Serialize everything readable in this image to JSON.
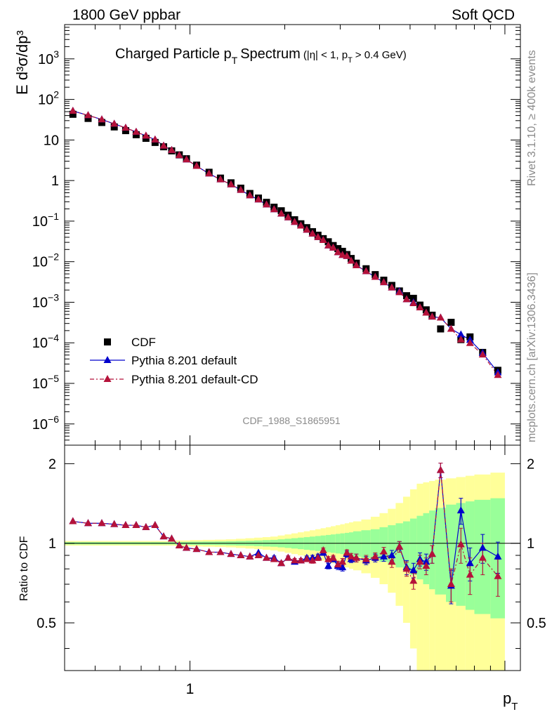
{
  "header": {
    "left": "1800 GeV ppbar",
    "right": "Soft QCD"
  },
  "side_labels": {
    "rivet": "Rivet 3.1.10, ≥ 400k events",
    "mcplots": "mcplots.cern.ch [arXiv:1306.3436]"
  },
  "chart_data": [
    {
      "type": "scatter",
      "title_main": "Charged Particle p",
      "title_main_sub": "T",
      "title_main_suffix": "Spectrum",
      "title_cut_a": "(|η| < 1, p",
      "title_cut_sub": "T",
      "title_cut_b": "> 0.4 GeV)",
      "ylabel": "E d³σ/dp³",
      "xlabel": "p",
      "xlabel_sub": "T",
      "analysis_label": "CDF_1988_S1865951",
      "xscale": "log",
      "yscale": "log",
      "xlim": [
        0.4,
        11.2
      ],
      "ylim": [
        3e-07,
        7000
      ],
      "ytick_labels": [
        {
          "base": "10",
          "exp": "3",
          "value": 1000
        },
        {
          "base": "10",
          "exp": "2",
          "value": 100
        },
        {
          "base": "10",
          "exp": "",
          "value": 10
        },
        {
          "base": "1",
          "exp": "",
          "value": 1
        },
        {
          "base": "10",
          "exp": "−1",
          "value": 0.1
        },
        {
          "base": "10",
          "exp": "−2",
          "value": 0.01
        },
        {
          "base": "10",
          "exp": "−3",
          "value": 0.001
        },
        {
          "base": "10",
          "exp": "−4",
          "value": 0.0001
        },
        {
          "base": "10",
          "exp": "−5",
          "value": 1e-05
        },
        {
          "base": "10",
          "exp": "−6",
          "value": 1e-06
        }
      ],
      "xtick_labels": [
        {
          "label": "1",
          "value": 1
        }
      ],
      "legend": {
        "placement": "bottom-left",
        "entries": [
          {
            "label": "CDF",
            "marker": "square",
            "color": "#000000",
            "line": "none"
          },
          {
            "label": "Pythia 8.201 default",
            "marker": "triangle",
            "color": "#0000cc",
            "line": "solid"
          },
          {
            "label": "Pythia 8.201 default-CD",
            "marker": "triangle",
            "color": "#b5123a",
            "line": "dashdot"
          }
        ]
      },
      "x": [
        0.425,
        0.475,
        0.525,
        0.575,
        0.625,
        0.675,
        0.725,
        0.775,
        0.825,
        0.875,
        0.925,
        0.975,
        1.05,
        1.15,
        1.25,
        1.35,
        1.45,
        1.55,
        1.65,
        1.75,
        1.85,
        1.95,
        2.05,
        2.15,
        2.25,
        2.35,
        2.45,
        2.55,
        2.65,
        2.75,
        2.85,
        2.95,
        3.05,
        3.15,
        3.25,
        3.375,
        3.625,
        3.875,
        4.125,
        4.375,
        4.625,
        4.875,
        5.125,
        5.375,
        5.625,
        5.875,
        6.25,
        6.75,
        7.25,
        7.75,
        8.5,
        9.5
      ],
      "series": [
        {
          "name": "CDF",
          "values": [
            43,
            34,
            27,
            21,
            17,
            13.5,
            11,
            8.7,
            6.8,
            5.4,
            4.3,
            3.45,
            2.4,
            1.6,
            1.15,
            0.88,
            0.65,
            0.48,
            0.37,
            0.29,
            0.22,
            0.18,
            0.14,
            0.108,
            0.086,
            0.069,
            0.055,
            0.045,
            0.037,
            0.031,
            0.025,
            0.021,
            0.018,
            0.015,
            0.012,
            0.0092,
            0.0067,
            0.0048,
            0.0035,
            0.0026,
            0.0019,
            0.00145,
            0.00125,
            0.00085,
            0.00065,
            0.00048,
            0.00022,
            0.00032,
            0.00012,
            0.00014,
            5.8e-05,
            2.1e-05
          ]
        },
        {
          "name": "Pythia 8.201 default",
          "values": [
            52,
            40.5,
            32,
            25,
            19.9,
            15.8,
            12.7,
            10.2,
            7.2,
            5.6,
            4.2,
            3.3,
            2.28,
            1.48,
            1.06,
            0.8,
            0.585,
            0.43,
            0.34,
            0.255,
            0.194,
            0.152,
            0.123,
            0.095,
            0.077,
            0.061,
            0.049,
            0.04,
            0.034,
            0.025,
            0.022,
            0.017,
            0.0146,
            0.0137,
            0.0105,
            0.0081,
            0.0058,
            0.0042,
            0.0031,
            0.0023,
            0.00185,
            0.00118,
            0.00099,
            0.00074,
            0.00055,
            0.00044,
            0.000416,
            0.00022,
            0.00016,
            0.000118,
            5.6e-05,
            1.86e-05
          ]
        },
        {
          "name": "Pythia 8.201 default-CD",
          "values": [
            52,
            40.5,
            32,
            25,
            19.9,
            15.8,
            12.7,
            10.2,
            7.2,
            5.6,
            4.2,
            3.3,
            2.28,
            1.48,
            1.06,
            0.8,
            0.585,
            0.43,
            0.34,
            0.255,
            0.194,
            0.152,
            0.123,
            0.095,
            0.077,
            0.061,
            0.049,
            0.04,
            0.034,
            0.025,
            0.022,
            0.017,
            0.0146,
            0.0137,
            0.0105,
            0.0081,
            0.0058,
            0.0042,
            0.0031,
            0.0023,
            0.00175,
            0.00118,
            0.00094,
            0.00074,
            0.00055,
            0.00044,
            0.000416,
            0.00022,
            0.00012,
            9.8e-05,
            5.1e-05,
            1.6e-05
          ]
        }
      ]
    },
    {
      "type": "scatter",
      "ylabel": "Ratio to CDF",
      "xscale": "log",
      "yscale": "log",
      "xlim": [
        0.4,
        11.2
      ],
      "ylim": [
        0.33,
        2.35
      ],
      "ytick_labels": [
        {
          "label": "2",
          "value": 2
        },
        {
          "label": "1",
          "value": 1
        },
        {
          "label": "0.5",
          "value": 0.5
        }
      ],
      "reference_line": 1,
      "band_colors": {
        "inner": "#99ff99",
        "outer": "#ffff99"
      },
      "bands": {
        "x_edges": [
          0.4,
          0.45,
          0.5,
          0.55,
          0.6,
          0.65,
          0.7,
          0.75,
          0.8,
          0.85,
          0.9,
          0.95,
          1.0,
          1.1,
          1.2,
          1.3,
          1.4,
          1.5,
          1.6,
          1.7,
          1.8,
          1.9,
          2.0,
          2.1,
          2.2,
          2.3,
          2.4,
          2.5,
          2.6,
          2.7,
          2.8,
          2.9,
          3.0,
          3.1,
          3.2,
          3.3,
          3.5,
          3.75,
          4.0,
          4.25,
          4.5,
          4.75,
          5.0,
          5.25,
          5.5,
          5.75,
          6.0,
          6.5,
          7.0,
          7.5,
          8.0,
          9.0,
          10.0
        ],
        "inner_half_width": [
          0.01,
          0.01,
          0.01,
          0.01,
          0.01,
          0.01,
          0.01,
          0.01,
          0.01,
          0.01,
          0.012,
          0.012,
          0.014,
          0.015,
          0.016,
          0.018,
          0.02,
          0.022,
          0.025,
          0.028,
          0.03,
          0.035,
          0.04,
          0.045,
          0.05,
          0.055,
          0.06,
          0.065,
          0.07,
          0.075,
          0.08,
          0.085,
          0.09,
          0.095,
          0.1,
          0.11,
          0.12,
          0.13,
          0.15,
          0.17,
          0.19,
          0.21,
          0.24,
          0.27,
          0.3,
          0.33,
          0.36,
          0.4,
          0.42,
          0.44,
          0.46,
          0.48
        ],
        "outer_half_width": [
          0.02,
          0.02,
          0.02,
          0.02,
          0.02,
          0.02,
          0.02,
          0.02,
          0.02,
          0.02,
          0.025,
          0.025,
          0.028,
          0.03,
          0.032,
          0.035,
          0.04,
          0.045,
          0.05,
          0.055,
          0.06,
          0.07,
          0.08,
          0.09,
          0.1,
          0.11,
          0.12,
          0.13,
          0.14,
          0.15,
          0.16,
          0.17,
          0.18,
          0.19,
          0.2,
          0.21,
          0.23,
          0.26,
          0.3,
          0.35,
          0.42,
          0.5,
          0.6,
          0.68,
          0.7,
          0.72,
          0.74,
          0.76,
          0.78,
          0.8,
          0.82,
          0.85
        ]
      },
      "series": [
        {
          "name": "Pythia 8.201 default",
          "values": [
            1.21,
            1.19,
            1.19,
            1.18,
            1.17,
            1.17,
            1.15,
            1.17,
            1.06,
            1.04,
            0.98,
            0.96,
            0.95,
            0.925,
            0.925,
            0.91,
            0.9,
            0.89,
            0.92,
            0.88,
            0.88,
            0.84,
            0.88,
            0.85,
            0.86,
            0.88,
            0.88,
            0.89,
            0.92,
            0.82,
            0.87,
            0.82,
            0.81,
            0.91,
            0.87,
            0.88,
            0.86,
            0.88,
            0.89,
            0.9,
            0.97,
            0.81,
            0.79,
            0.87,
            0.85,
            0.91,
            1.89,
            0.69,
            1.33,
            0.84,
            0.96,
            0.89
          ],
          "errors": [
            0.01,
            0.01,
            0.01,
            0.01,
            0.01,
            0.01,
            0.01,
            0.01,
            0.01,
            0.01,
            0.01,
            0.01,
            0.01,
            0.01,
            0.01,
            0.01,
            0.01,
            0.01,
            0.01,
            0.01,
            0.015,
            0.015,
            0.015,
            0.015,
            0.015,
            0.015,
            0.02,
            0.02,
            0.02,
            0.02,
            0.02,
            0.025,
            0.025,
            0.025,
            0.025,
            0.03,
            0.03,
            0.03,
            0.035,
            0.04,
            0.045,
            0.05,
            0.05,
            0.05,
            0.06,
            0.07,
            0.12,
            0.1,
            0.15,
            0.12,
            0.12,
            0.12
          ]
        },
        {
          "name": "Pythia 8.201 default-CD",
          "values": [
            1.21,
            1.19,
            1.19,
            1.18,
            1.17,
            1.17,
            1.15,
            1.17,
            1.06,
            1.04,
            0.98,
            0.96,
            0.95,
            0.925,
            0.925,
            0.91,
            0.9,
            0.89,
            0.9,
            0.88,
            0.87,
            0.84,
            0.88,
            0.86,
            0.86,
            0.87,
            0.86,
            0.88,
            0.94,
            0.87,
            0.88,
            0.83,
            0.85,
            0.92,
            0.89,
            0.88,
            0.87,
            0.89,
            0.93,
            0.85,
            0.97,
            0.8,
            0.72,
            0.85,
            0.82,
            0.91,
            1.89,
            0.7,
            0.99,
            0.76,
            0.88,
            0.75
          ],
          "errors": [
            0.01,
            0.01,
            0.01,
            0.01,
            0.01,
            0.01,
            0.01,
            0.01,
            0.01,
            0.01,
            0.01,
            0.01,
            0.01,
            0.01,
            0.01,
            0.01,
            0.01,
            0.01,
            0.01,
            0.01,
            0.015,
            0.015,
            0.015,
            0.015,
            0.015,
            0.015,
            0.02,
            0.02,
            0.02,
            0.02,
            0.02,
            0.025,
            0.025,
            0.025,
            0.025,
            0.03,
            0.03,
            0.03,
            0.035,
            0.04,
            0.045,
            0.05,
            0.05,
            0.05,
            0.06,
            0.07,
            0.12,
            0.1,
            0.15,
            0.12,
            0.12,
            0.12
          ]
        }
      ]
    }
  ]
}
